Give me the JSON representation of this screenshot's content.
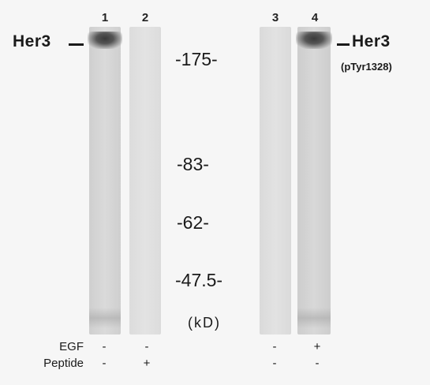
{
  "lanes": [
    {
      "number": "1",
      "egf": "-",
      "peptide": "-"
    },
    {
      "number": "2",
      "egf": "-",
      "peptide": "+"
    },
    {
      "number": "3",
      "egf": "-",
      "peptide": "-"
    },
    {
      "number": "4",
      "egf": "+",
      "peptide": "-"
    }
  ],
  "labels": {
    "left_target": "Her3",
    "right_target": "Her3",
    "right_sub": "(pTyr1328)",
    "units": "(kD)"
  },
  "markers": [
    {
      "text": "-175-",
      "value": 175
    },
    {
      "text": "-83-",
      "value": 83
    },
    {
      "text": "-62-",
      "value": 62
    },
    {
      "text": "-47.5-",
      "value": 47.5
    }
  ],
  "conditions": {
    "egf_label": "EGF",
    "peptide_label": "Peptide"
  },
  "colors": {
    "background": "#f6f6f6",
    "lane_background": "#d8d8d8",
    "band": "#3a3a3a"
  }
}
